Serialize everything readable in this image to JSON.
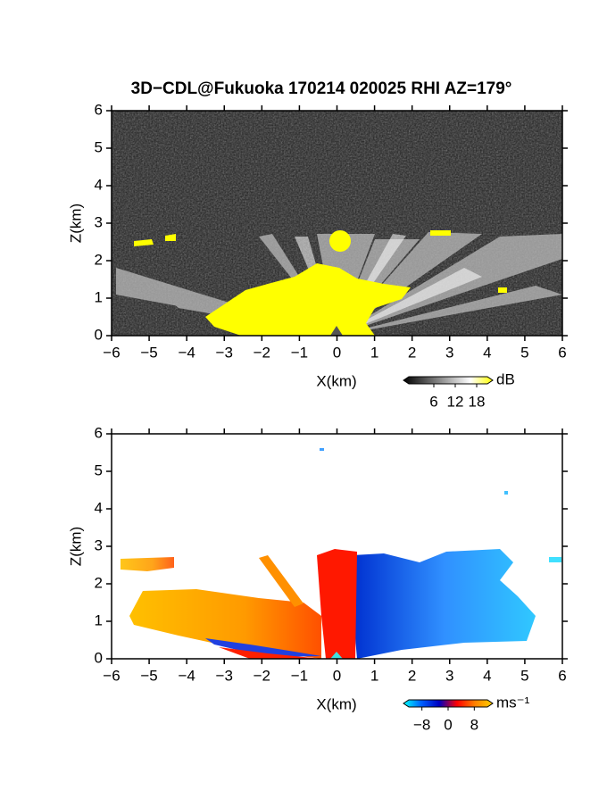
{
  "chart_data": [
    {
      "type": "heatmap",
      "title": "3D−CDL@Fukuoka 170214 020025 RHI AZ=179°",
      "x_label": "X(km)",
      "y_label": "Z(km)",
      "xlim": [
        -6,
        6
      ],
      "ylim": [
        0,
        6
      ],
      "xticks": [
        -6,
        -5,
        -4,
        -3,
        -2,
        -1,
        0,
        1,
        2,
        3,
        4,
        5,
        6
      ],
      "yticks": [
        0,
        1,
        2,
        3,
        4,
        5,
        6
      ],
      "colorbar": {
        "label": "dB",
        "lim": [
          -1,
          21
        ],
        "ticks": [
          6,
          12,
          18
        ],
        "colors": [
          "#000000",
          "#555555",
          "#aaaaaa",
          "#ffffff",
          "#ffff00"
        ]
      }
    },
    {
      "type": "heatmap",
      "x_label": "X(km)",
      "y_label": "Z(km)",
      "xlim": [
        -6,
        6
      ],
      "ylim": [
        0,
        6
      ],
      "xticks": [
        -6,
        -5,
        -4,
        -3,
        -2,
        -1,
        0,
        1,
        2,
        3,
        4,
        5,
        6
      ],
      "yticks": [
        0,
        1,
        2,
        3,
        4,
        5,
        6
      ],
      "colorbar": {
        "label": "ms⁻¹",
        "lim": [
          -12,
          12
        ],
        "ticks": [
          -8,
          0,
          8
        ],
        "colors": [
          "#00ffff",
          "#0060ff",
          "#0000c0",
          "#ff0000",
          "#ff8000",
          "#ffd000"
        ]
      }
    }
  ]
}
